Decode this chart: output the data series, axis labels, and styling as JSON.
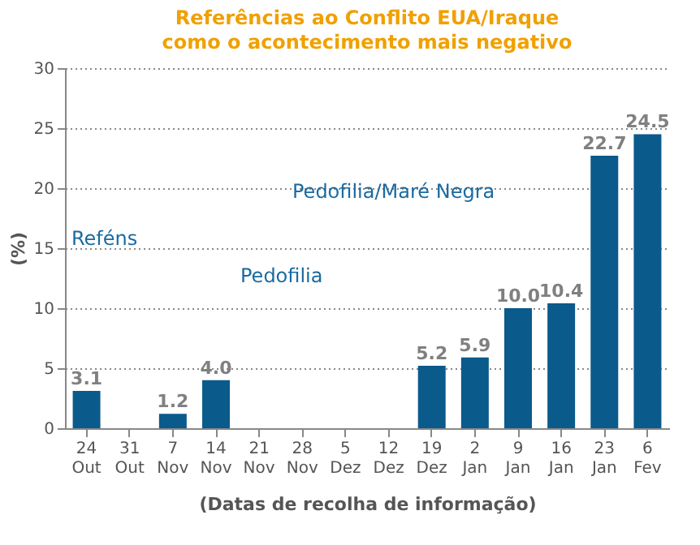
{
  "chart_data": {
    "type": "bar",
    "title": "Referências ao Conflito EUA/Iraque",
    "subtitle": "como o acontecimento mais negativo",
    "xlabel": "(Datas de recolha de informação)",
    "ylabel": "(%)",
    "categories": [
      "24 Out",
      "31 Out",
      "7 Nov",
      "14 Nov",
      "21 Nov",
      "28 Nov",
      "5 Dez",
      "12 Dez",
      "19 Dez",
      "2 Jan",
      "9 Jan",
      "16 Jan",
      "23 Jan",
      "6 Fev"
    ],
    "values": [
      3.1,
      null,
      1.2,
      4.0,
      null,
      null,
      null,
      null,
      5.2,
      5.9,
      10.0,
      10.4,
      22.7,
      24.5
    ],
    "value_labels": [
      "3.1",
      null,
      "1.2",
      "4.0",
      null,
      null,
      null,
      null,
      "5.2",
      "5.9",
      "10.0",
      "10.4",
      "22.7",
      "24.5"
    ],
    "color": "#0b5a8c",
    "ylim": [
      0,
      30
    ],
    "yticks": [
      0,
      5,
      10,
      15,
      20,
      25,
      30
    ],
    "grid": "y",
    "annotations": [
      "Reféns",
      "Pedofilia",
      "Pedofilia/Maré Negra"
    ]
  }
}
